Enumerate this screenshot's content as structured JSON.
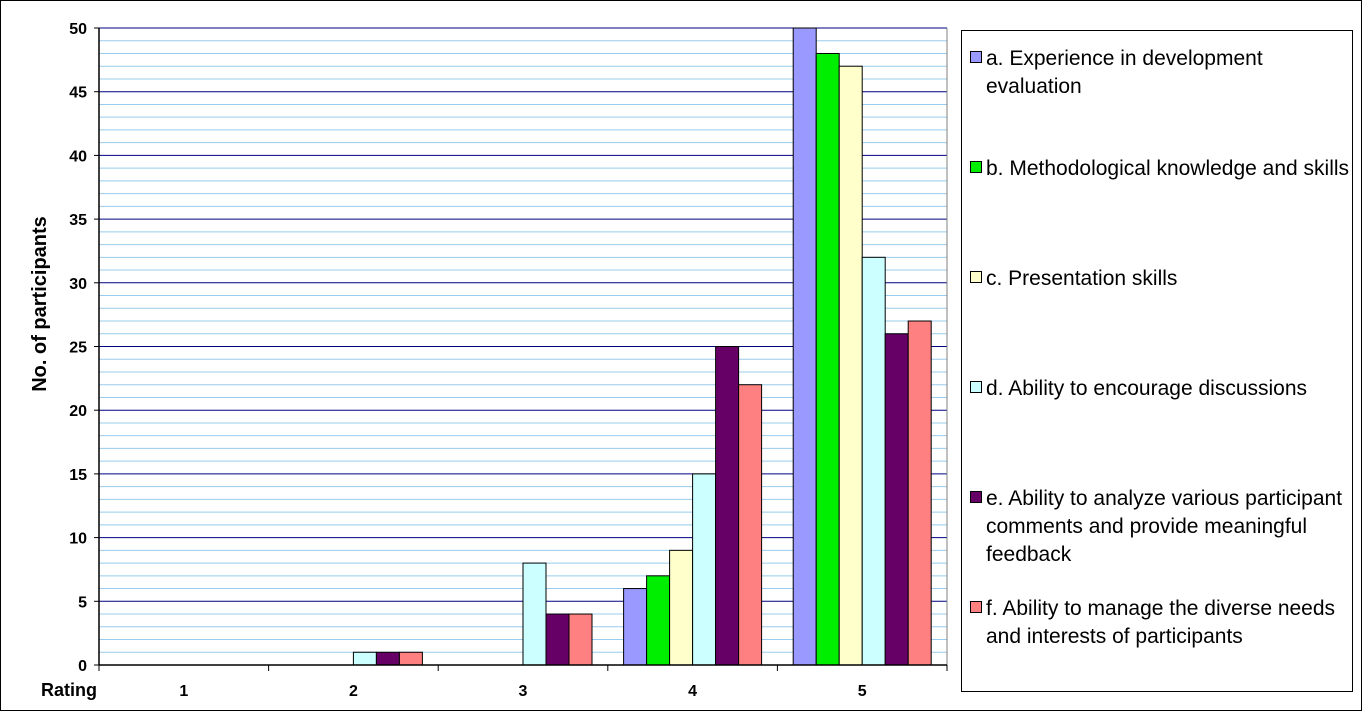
{
  "chart_data": {
    "type": "bar",
    "title": "",
    "xlabel": "Rating",
    "ylabel": "No. of participants",
    "categories": [
      "1",
      "2",
      "3",
      "4",
      "5"
    ],
    "ylim": [
      0,
      50
    ],
    "yticks": [
      0,
      5,
      10,
      15,
      20,
      25,
      30,
      35,
      40,
      45,
      50
    ],
    "grid": true,
    "legend_position": "right",
    "series": [
      {
        "name": "a. Experience in development evaluation",
        "color": "#9999ff",
        "values": [
          0,
          0,
          0,
          6,
          50
        ]
      },
      {
        "name": "b. Methodological knowledge and skills",
        "color": "#00ee00",
        "values": [
          0,
          0,
          0,
          7,
          48
        ]
      },
      {
        "name": "c. Presentation skills",
        "color": "#ffffcc",
        "values": [
          0,
          0,
          0,
          9,
          47
        ]
      },
      {
        "name": "d. Ability to encourage discussions",
        "color": "#ccffff",
        "values": [
          0,
          1,
          8,
          15,
          32
        ]
      },
      {
        "name": "e. Ability to analyze various participant comments and provide meaningful feedback",
        "color": "#660066",
        "values": [
          0,
          1,
          4,
          25,
          26
        ]
      },
      {
        "name": "f. Ability to manage the diverse needs and interests of participants",
        "color": "#ff8080",
        "values": [
          0,
          1,
          4,
          22,
          27
        ]
      }
    ]
  }
}
